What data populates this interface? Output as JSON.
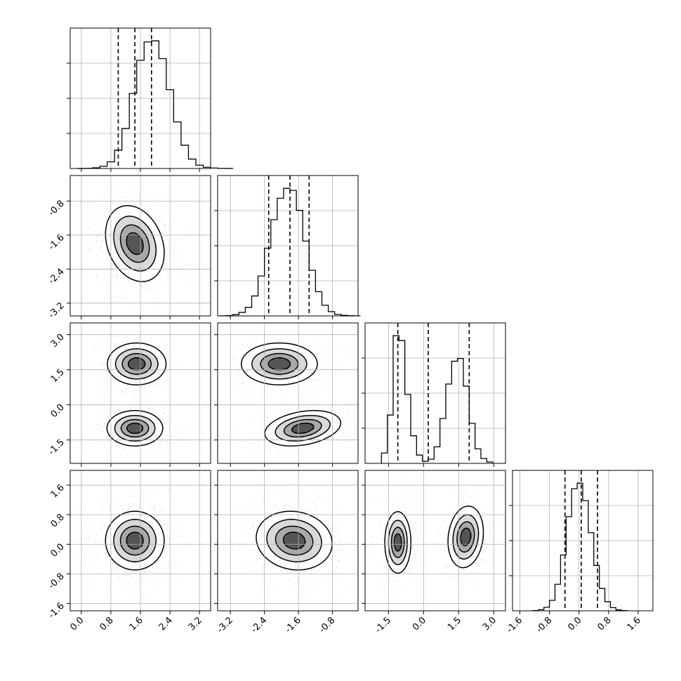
{
  "chart_data": {
    "type": "corner",
    "grid": true,
    "colors": {
      "line": "#000000",
      "grid": "#b0b0b0",
      "quantile": "#000000"
    },
    "parameters": [
      {
        "index": 0,
        "range": [
          -0.3,
          3.5
        ],
        "ticks": [
          "0.0",
          "0.8",
          "1.6",
          "2.4",
          "3.2"
        ],
        "tick_values": [
          0.0,
          0.8,
          1.6,
          2.4,
          3.2
        ],
        "quantiles": [
          1.0,
          1.45,
          1.9
        ],
        "hist": {
          "start": -0.1,
          "bin_width": 0.2,
          "values": [
            1,
            3,
            12,
            40,
            120,
            330,
            720,
            1350,
            1950,
            2280,
            2300,
            1980,
            1420,
            840,
            420,
            170,
            60,
            22,
            8,
            2,
            1
          ]
        }
      },
      {
        "index": 1,
        "range": [
          -3.5,
          -0.2
        ],
        "ticks": [
          "-3.2",
          "-2.4",
          "-1.6",
          "-0.8"
        ],
        "tick_values": [
          -3.2,
          -2.4,
          -1.6,
          -0.8
        ],
        "quantiles": [
          -2.3,
          -1.8,
          -1.35
        ],
        "hist": {
          "start": -3.45,
          "bin_width": 0.15,
          "values": [
            1,
            5,
            18,
            50,
            120,
            280,
            560,
            950,
            1350,
            1650,
            1790,
            1760,
            1480,
            1050,
            640,
            340,
            150,
            60,
            22,
            8,
            3,
            1
          ]
        }
      },
      {
        "index": 2,
        "range": [
          -2.5,
          3.5
        ],
        "ticks": [
          "-1.5",
          "0.0",
          "1.5",
          "3.0"
        ],
        "tick_values": [
          -1.5,
          0.0,
          1.5,
          3.0
        ],
        "quantiles": [
          -1.1,
          0.2,
          1.95
        ],
        "hist": {
          "start": -1.8,
          "bin_width": 0.25,
          "values": [
            150,
            700,
            1850,
            1780,
            1000,
            400,
            120,
            30,
            60,
            240,
            650,
            1150,
            1480,
            1520,
            1120,
            580,
            210,
            70,
            20
          ]
        }
      },
      {
        "index": 3,
        "range": [
          -1.8,
          2.0
        ],
        "ticks": [
          "-1.6",
          "-0.8",
          "0.0",
          "0.8",
          "1.6"
        ],
        "tick_values": [
          -1.6,
          -0.8,
          0.0,
          0.8,
          1.6
        ],
        "quantiles": [
          -0.38,
          0.06,
          0.5
        ],
        "hist": {
          "start": -1.25,
          "bin_width": 0.15,
          "values": [
            3,
            15,
            50,
            150,
            380,
            800,
            1350,
            1750,
            1830,
            1580,
            1120,
            650,
            320,
            130,
            45,
            12,
            3
          ]
        }
      }
    ],
    "blobs_2d": [
      {
        "row": 1,
        "col": 0,
        "peaks": [
          {
            "mu": [
              1.45,
              -1.8
            ],
            "sd": [
              0.4,
              0.45
            ],
            "rho": -0.25,
            "w": 1
          }
        ]
      },
      {
        "row": 2,
        "col": 0,
        "peaks": [
          {
            "mu": [
              1.5,
              1.75
            ],
            "sd": [
              0.4,
              0.45
            ],
            "rho": 0.0,
            "w": 0.5
          },
          {
            "mu": [
              1.45,
              -1.0
            ],
            "sd": [
              0.38,
              0.38
            ],
            "rho": 0.0,
            "w": 0.5
          }
        ]
      },
      {
        "row": 2,
        "col": 1,
        "peaks": [
          {
            "mu": [
              -2.05,
              1.75
            ],
            "sd": [
              0.45,
              0.45
            ],
            "rho": 0.0,
            "w": 0.5
          },
          {
            "mu": [
              -1.5,
              -1.0
            ],
            "sd": [
              0.45,
              0.38
            ],
            "rho": 0.3,
            "w": 0.5
          }
        ]
      },
      {
        "row": 3,
        "col": 0,
        "peaks": [
          {
            "mu": [
              1.45,
              0.1
            ],
            "sd": [
              0.4,
              0.4
            ],
            "rho": 0.0,
            "w": 1
          }
        ]
      },
      {
        "row": 3,
        "col": 1,
        "peaks": [
          {
            "mu": [
              -1.7,
              0.1
            ],
            "sd": [
              0.45,
              0.4
            ],
            "rho": -0.1,
            "w": 1
          }
        ]
      },
      {
        "row": 3,
        "col": 2,
        "peaks": [
          {
            "mu": [
              -1.1,
              0.05
            ],
            "sd": [
              0.28,
              0.42
            ],
            "rho": 0.0,
            "w": 0.5
          },
          {
            "mu": [
              1.8,
              0.2
            ],
            "sd": [
              0.38,
              0.42
            ],
            "rho": 0.15,
            "w": 0.5
          }
        ]
      }
    ]
  }
}
